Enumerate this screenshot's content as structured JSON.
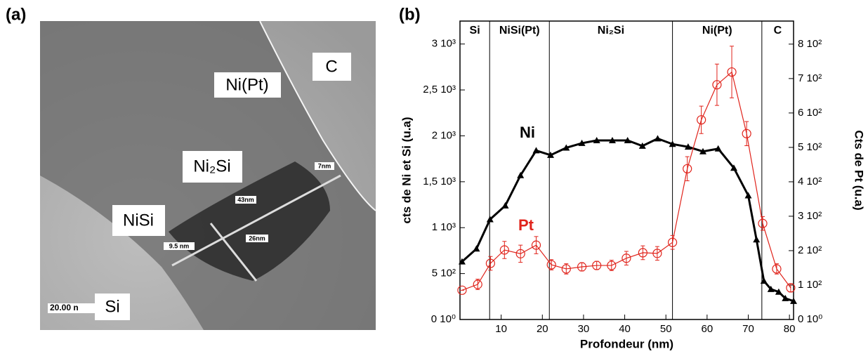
{
  "image_panel": {
    "label": "(a)",
    "labels": [
      {
        "text": "Ni(Pt)"
      },
      {
        "text": "C"
      },
      {
        "text": "Ni₂Si"
      },
      {
        "text": "NiSi"
      },
      {
        "text": "Si"
      }
    ],
    "measurements": [
      "7nm",
      "43nm",
      "26nm",
      "9.5 nm"
    ],
    "scale_bar": "20.00 n"
  },
  "chart_data": {
    "type": "line",
    "panel_label": "(b)",
    "xlabel": "Profondeur (nm)",
    "ylabel": "cts de Ni et Si (u.a)",
    "y2label": "Cts de Pt (u.a)",
    "xlim": [
      0,
      81
    ],
    "xticks": [
      10,
      20,
      30,
      40,
      50,
      60,
      70,
      80
    ],
    "ylim": [
      0,
      3250
    ],
    "yticks": [
      {
        "value": 0,
        "label": "0 10⁰"
      },
      {
        "value": 500,
        "label": "5 10²"
      },
      {
        "value": 1000,
        "label": "1 10³"
      },
      {
        "value": 1500,
        "label": "1,5 10³"
      },
      {
        "value": 2000,
        "label": "2 10³"
      },
      {
        "value": 2500,
        "label": "2,5 10³"
      },
      {
        "value": 3000,
        "label": "3 10³"
      }
    ],
    "y2lim": [
      0,
      867
    ],
    "y2ticks": [
      {
        "value": 0,
        "label": "0 10⁰"
      },
      {
        "value": 100,
        "label": "1 10²"
      },
      {
        "value": 200,
        "label": "2 10²"
      },
      {
        "value": 300,
        "label": "3 10²"
      },
      {
        "value": 400,
        "label": "4 10²"
      },
      {
        "value": 500,
        "label": "5 10²"
      },
      {
        "value": 600,
        "label": "6 10²"
      },
      {
        "value": 700,
        "label": "7 10²"
      },
      {
        "value": 800,
        "label": "8 10²"
      }
    ],
    "regions": [
      {
        "label": "Si",
        "boundary": 7.2
      },
      {
        "label": "NiSi(Pt)",
        "boundary": 21.7
      },
      {
        "label": "Ni₂Si",
        "boundary": 51.6
      },
      {
        "label": "Ni(Pt)",
        "boundary": 73.3
      },
      {
        "label": "C"
      }
    ],
    "series": [
      {
        "name": "Ni",
        "color": "#000000",
        "marker": "triangle",
        "x": [
          0.5,
          4,
          7.3,
          11,
          14.7,
          18.5,
          22,
          25.8,
          29.6,
          33.2,
          37,
          40.7,
          44.3,
          48,
          51.6,
          55.4,
          59,
          62.7,
          66.5,
          70,
          72,
          73.8,
          75.5,
          77.4,
          79,
          81
        ],
        "values": [
          630,
          770,
          1090,
          1240,
          1570,
          1840,
          1790,
          1870,
          1920,
          1950,
          1950,
          1950,
          1890,
          1970,
          1910,
          1880,
          1830,
          1860,
          1650,
          1350,
          870,
          420,
          330,
          300,
          230,
          200
        ]
      },
      {
        "name": "Pt",
        "color": "#e0231b",
        "marker": "circle",
        "axis": "y2",
        "x": [
          0.5,
          4.3,
          7.4,
          10.8,
          14.7,
          18.5,
          22.2,
          25.8,
          29.6,
          33.2,
          36.8,
          40.4,
          44.4,
          47.9,
          51.6,
          55.2,
          58.6,
          62.4,
          66,
          69.6,
          73.5,
          76.9,
          80.3
        ],
        "values": [
          85,
          102,
          163,
          202,
          191,
          216,
          159,
          147,
          153,
          157,
          157,
          178,
          194,
          192,
          224,
          438,
          580,
          682,
          719,
          540,
          279,
          147,
          92
        ],
        "errors": [
          0,
          15,
          20,
          25,
          25,
          25,
          15,
          15,
          12,
          12,
          15,
          20,
          20,
          20,
          20,
          35,
          40,
          60,
          75,
          35,
          20,
          15,
          12
        ]
      }
    ]
  }
}
